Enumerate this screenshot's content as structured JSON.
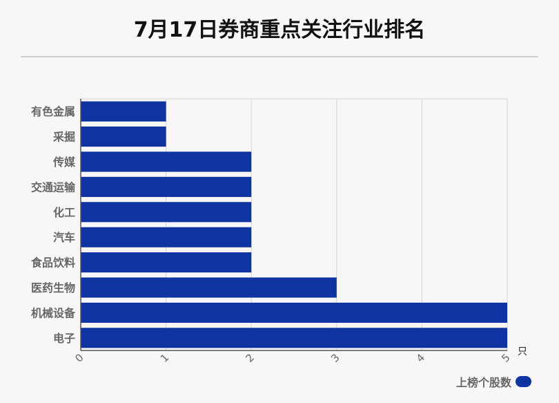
{
  "title": "7月17日券商重点关注行业排名",
  "legend": {
    "label": "上榜个股数"
  },
  "colors": {
    "bar": "#0f33a0",
    "grid": "#d4d4d4",
    "axis": "#555555",
    "label": "#666666"
  },
  "chart_data": {
    "type": "bar",
    "orientation": "horizontal",
    "categories": [
      "有色金属",
      "采掘",
      "传媒",
      "交通运输",
      "化工",
      "汽车",
      "食品饮料",
      "医药生物",
      "机械设备",
      "电子"
    ],
    "series": [
      {
        "name": "上榜个股数",
        "values": [
          1,
          1,
          2,
          2,
          2,
          2,
          2,
          3,
          5,
          5
        ]
      }
    ],
    "xlim": [
      0,
      5
    ],
    "xticks": [
      "0",
      "1",
      "2",
      "3",
      "4",
      "5"
    ],
    "xunit": "只",
    "grid": true,
    "legend_position": "bottom-right"
  }
}
